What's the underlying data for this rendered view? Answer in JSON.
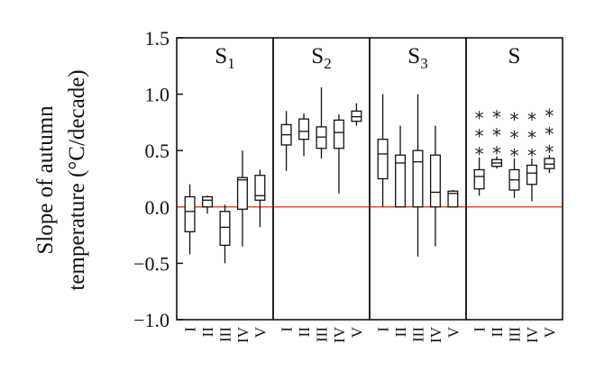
{
  "chart_data": {
    "type": "box",
    "ylabel_lines": [
      "Slope of autumn",
      "temperature (°C/decade)"
    ],
    "ylim": [
      -1.0,
      1.5
    ],
    "yticks": [
      "1.5",
      "1.0",
      "0.5",
      "0.0",
      "−0.5",
      "−1.0"
    ],
    "ytick_values": [
      1.5,
      1.0,
      0.5,
      0.0,
      -0.5,
      -1.0
    ],
    "categories": [
      "I",
      "II",
      "III",
      "IV",
      "V"
    ],
    "reference_line": {
      "y": 0.0,
      "color": "#e8502a"
    },
    "panels": [
      {
        "title": "S",
        "subscript": "1",
        "boxes": [
          {
            "min": -0.42,
            "q1": -0.22,
            "median": -0.04,
            "q3": 0.09,
            "max": 0.2
          },
          {
            "min": -0.06,
            "q1": 0.0,
            "median": 0.06,
            "q3": 0.09,
            "max": 0.1
          },
          {
            "min": -0.5,
            "q1": -0.34,
            "median": -0.18,
            "q3": -0.04,
            "max": 0.02
          },
          {
            "min": -0.35,
            "q1": -0.02,
            "median": 0.24,
            "q3": 0.26,
            "max": 0.5
          },
          {
            "min": -0.18,
            "q1": 0.06,
            "median": 0.1,
            "q3": 0.28,
            "max": 0.33
          }
        ],
        "stars": [
          0,
          0,
          0,
          0,
          0
        ]
      },
      {
        "title": "S",
        "subscript": "2",
        "boxes": [
          {
            "min": 0.32,
            "q1": 0.55,
            "median": 0.64,
            "q3": 0.73,
            "max": 0.85
          },
          {
            "min": 0.45,
            "q1": 0.6,
            "median": 0.67,
            "q3": 0.78,
            "max": 0.83
          },
          {
            "min": 0.43,
            "q1": 0.52,
            "median": 0.62,
            "q3": 0.71,
            "max": 1.06
          },
          {
            "min": 0.12,
            "q1": 0.52,
            "median": 0.66,
            "q3": 0.77,
            "max": 0.82
          },
          {
            "min": 0.72,
            "q1": 0.76,
            "median": 0.8,
            "q3": 0.85,
            "max": 0.92
          }
        ],
        "stars": [
          0,
          0,
          0,
          0,
          0
        ]
      },
      {
        "title": "S",
        "subscript": "3",
        "boxes": [
          {
            "min": 0.0,
            "q1": 0.25,
            "median": 0.47,
            "q3": 0.6,
            "max": 1.0
          },
          {
            "min": 0.0,
            "q1": 0.0,
            "median": 0.39,
            "q3": 0.46,
            "max": 0.72
          },
          {
            "min": -0.44,
            "q1": 0.0,
            "median": 0.4,
            "q3": 0.5,
            "max": 1.0
          },
          {
            "min": -0.35,
            "q1": 0.0,
            "median": 0.13,
            "q3": 0.46,
            "max": 0.72
          },
          {
            "min": 0.0,
            "q1": 0.0,
            "median": 0.12,
            "q3": 0.14,
            "max": 0.15
          }
        ],
        "stars": [
          0,
          0,
          0,
          0,
          0
        ]
      },
      {
        "title": "S",
        "subscript": "",
        "boxes": [
          {
            "min": 0.1,
            "q1": 0.16,
            "median": 0.27,
            "q3": 0.33,
            "max": 0.44
          },
          {
            "min": 0.34,
            "q1": 0.36,
            "median": 0.39,
            "q3": 0.42,
            "max": 0.45
          },
          {
            "min": 0.08,
            "q1": 0.15,
            "median": 0.24,
            "q3": 0.33,
            "max": 0.43
          },
          {
            "min": 0.05,
            "q1": 0.2,
            "median": 0.3,
            "q3": 0.37,
            "max": 0.43
          },
          {
            "min": 0.3,
            "q1": 0.34,
            "median": 0.38,
            "q3": 0.43,
            "max": 0.46
          }
        ],
        "stars": [
          3,
          3,
          3,
          3,
          3
        ]
      }
    ],
    "star_symbol": "*",
    "grid": false,
    "legend": "none"
  }
}
